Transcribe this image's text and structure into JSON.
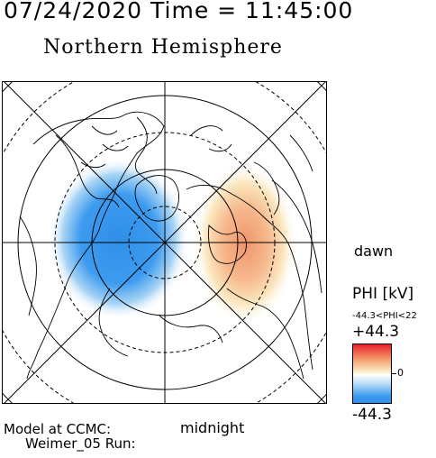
{
  "header": {
    "date_time": "07/24/2020 Time = 11:45:00",
    "title": "Northern Hemisphere"
  },
  "map": {
    "labels": {
      "dawn": "dawn",
      "midnight": "midnight"
    }
  },
  "legend": {
    "title": "PHI [kV]",
    "range_text": "-44.3<PHI<22",
    "max_label": "+44.3",
    "zero_label": "0",
    "min_label": "-44.3",
    "colors": {
      "positive": "#e8202a",
      "zero": "#ffffff",
      "negative": "#2f8fe8"
    }
  },
  "footer": {
    "model_label": "Model at CCMC:",
    "run_label": "Weimer_05 Run:"
  }
}
